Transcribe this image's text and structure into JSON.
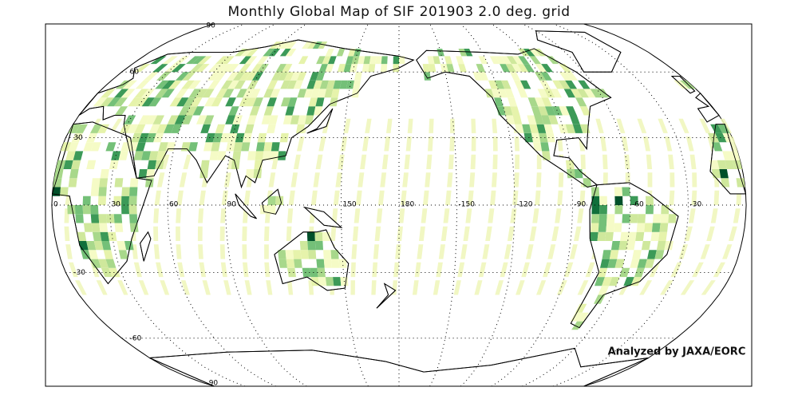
{
  "title": "Monthly Global Map of SIF 201903 2.0 deg. grid",
  "lat_labels": [
    90,
    60,
    30,
    -30,
    -60,
    -90
  ],
  "lon_labels": [
    0,
    30,
    60,
    90,
    150,
    180,
    -150,
    -120,
    -90,
    -60,
    -30
  ],
  "credit": "Analyzed by JAXA/EORC"
}
